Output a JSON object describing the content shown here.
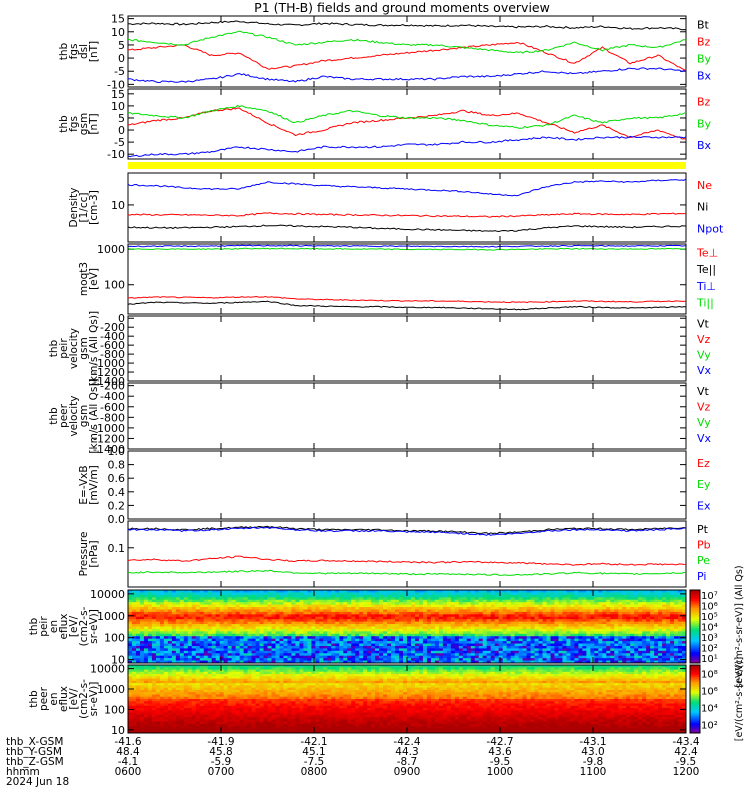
{
  "title": "P1 (TH-B) fields and ground moments overview",
  "chart_data": {
    "type": "line",
    "title": "P1 (TH-B) fields and ground moments overview",
    "panels": [
      {
        "id": "fgs-dsl",
        "ylabel": [
          "thb",
          "fgs",
          "dsl",
          "[nT]"
        ],
        "ylim": [
          -11,
          16
        ],
        "yticks": [
          "-10",
          "-5",
          "0",
          "5",
          "10",
          "15"
        ],
        "ytick_values": [
          -10,
          -5,
          0,
          5,
          10,
          15
        ],
        "scale": "linear",
        "series": [
          {
            "name": "Bt",
            "color": "#000000",
            "values": [
              13,
              13.2,
              12.8,
              13.5,
              14,
              13,
              12.5,
              13.2,
              12.8,
              12.5,
              12.6,
              12.2,
              12.5,
              12,
              11.8,
              12,
              11.5,
              12,
              11.2,
              11.5,
              11
            ]
          },
          {
            "name": "Bz",
            "color": "#ff0000",
            "values": [
              3,
              4,
              5,
              1,
              2,
              -4,
              -3,
              -1,
              0,
              1,
              2,
              3,
              4,
              5,
              6,
              2,
              -2,
              4,
              -2,
              1,
              -5
            ]
          },
          {
            "name": "By",
            "color": "#00dd00",
            "values": [
              7,
              6,
              5,
              8,
              10,
              8,
              5,
              6,
              7,
              6,
              5,
              5,
              4,
              3,
              2,
              3,
              6,
              3,
              5,
              4,
              7
            ]
          },
          {
            "name": "Bx",
            "color": "#0000ff",
            "values": [
              -8,
              -9,
              -9,
              -8,
              -6,
              -8,
              -9,
              -7,
              -8,
              -8,
              -8,
              -8,
              -7,
              -7,
              -6,
              -5,
              -6,
              -5,
              -4,
              -4,
              -5
            ]
          }
        ]
      },
      {
        "id": "fgs-gsm",
        "ylabel": [
          "thb",
          "fgs",
          "gsm",
          "[nT]"
        ],
        "ylim": [
          -12,
          17
        ],
        "yticks": [
          "-10",
          "-5",
          "0",
          "5",
          "10",
          "15"
        ],
        "ytick_values": [
          -10,
          -5,
          0,
          5,
          10,
          15
        ],
        "scale": "linear",
        "series": [
          {
            "name": "Bz",
            "color": "#ff0000",
            "values": [
              2,
              4,
              5,
              8,
              9,
              3,
              -2,
              0,
              3,
              4,
              5,
              6,
              8,
              6,
              7,
              3,
              -1,
              2,
              -3,
              0,
              -4
            ]
          },
          {
            "name": "By",
            "color": "#00dd00",
            "values": [
              7,
              6,
              5,
              8,
              10,
              8,
              3,
              6,
              8,
              6,
              5,
              5,
              4,
              2,
              1,
              2,
              6,
              3,
              5,
              5,
              7
            ]
          },
          {
            "name": "Bx",
            "color": "#0000ff",
            "values": [
              -11,
              -10,
              -10,
              -9,
              -7,
              -8,
              -9,
              -7,
              -7,
              -7,
              -6,
              -6,
              -5,
              -5,
              -4,
              -3,
              -4,
              -3,
              -3,
              -3,
              -3
            ]
          }
        ]
      },
      {
        "id": "density",
        "ylabel": [
          "Density",
          "[1/cc]",
          "[cm-3]"
        ],
        "ylim": [
          2,
          40
        ],
        "yticks": [
          "10"
        ],
        "ytick_values": [
          10
        ],
        "scale": "log",
        "series": [
          {
            "name": "Ne",
            "color": "#ff0000",
            "values": [
              6.6,
              6.5,
              6.5,
              6.4,
              6.3,
              7,
              6.8,
              6.6,
              6.5,
              6.4,
              6.3,
              6.2,
              6.1,
              6,
              6.2,
              6.5,
              6.8,
              6.7,
              6.6,
              6.8,
              6.9
            ]
          },
          {
            "name": "Ni",
            "color": "#000000",
            "values": [
              3.8,
              3.7,
              3.7,
              3.8,
              3.9,
              4.1,
              4,
              3.9,
              3.8,
              3.6,
              3.5,
              3.4,
              3.3,
              3.2,
              3.3,
              3.7,
              4,
              3.9,
              3.8,
              3.9,
              4
            ]
          },
          {
            "name": "Npot",
            "color": "#0000ff",
            "values": [
              24,
              23,
              21,
              20,
              20,
              27,
              25,
              23,
              22,
              21,
              20,
              19,
              18,
              16,
              15,
              22,
              27,
              28,
              27,
              29,
              30
            ]
          }
        ]
      },
      {
        "id": "temperature",
        "ylabel": [
          "moqt3",
          "[eV]"
        ],
        "ylim": [
          15,
          1400
        ],
        "yticks": [
          "100",
          "1000"
        ],
        "ytick_values": [
          100,
          1000
        ],
        "scale": "log",
        "series": [
          {
            "name": "Te⊥",
            "color": "#ff0000",
            "values": [
              42,
              45,
              44,
              43,
              45,
              46,
              40,
              38,
              37,
              36,
              35,
              35,
              34,
              33,
              32,
              33,
              35,
              34,
              33,
              34,
              35
            ]
          },
          {
            "name": "Te||",
            "color": "#000000",
            "values": [
              28,
              32,
              31,
              30,
              32,
              34,
              26,
              25,
              24,
              24,
              23,
              23,
              22,
              21,
              20,
              22,
              24,
              23,
              22,
              23,
              24
            ]
          },
          {
            "name": "Ti⊥",
            "color": "#0000ff",
            "values": [
              1200,
              1220,
              1210,
              1230,
              1250,
              1260,
              1250,
              1240,
              1230,
              1220,
              1210,
              1200,
              1190,
              1180,
              1200,
              1230,
              1250,
              1240,
              1230,
              1240,
              1250
            ]
          },
          {
            "name": "Ti||",
            "color": "#00dd00",
            "values": [
              1000,
              1010,
              1005,
              1010,
              1030,
              1040,
              1030,
              1020,
              1010,
              1000,
              990,
              985,
              980,
              970,
              990,
              1010,
              1030,
              1020,
              1010,
              1020,
              1030
            ]
          }
        ]
      },
      {
        "id": "peir-velocity",
        "ylabel": [
          "thb",
          "peir",
          "velocity",
          "gsm",
          "[km/s (All Qs)]"
        ],
        "ylim": [
          -1400,
          50
        ],
        "yticks": [
          "-1400",
          "-1200",
          "-1000",
          "-800",
          "-600",
          "-400",
          "-200",
          "0"
        ],
        "ytick_values": [
          -1400,
          -1200,
          -1000,
          -800,
          -600,
          -400,
          -200,
          0
        ],
        "scale": "linear",
        "legend": [
          "Vt",
          "Vz",
          "Vy",
          "Vx"
        ],
        "series": []
      },
      {
        "id": "peer-velocity",
        "ylabel": [
          "thb",
          "peer",
          "velocity",
          "gsm",
          "[km/s (All Qs)]"
        ],
        "ylim": [
          -1400,
          -150
        ],
        "yticks": [
          "-1400",
          "-1200",
          "-1000",
          "-800",
          "-600",
          "-400",
          "-200"
        ],
        "ytick_values": [
          -1400,
          -1200,
          -1000,
          -800,
          -600,
          -400,
          -200
        ],
        "scale": "linear",
        "legend": [
          "Vt",
          "Vz",
          "Vy",
          "Vx"
        ],
        "series": []
      },
      {
        "id": "efield",
        "ylabel": [
          "E=-VxB",
          "[mV/m]"
        ],
        "ylim": [
          0,
          1
        ],
        "yticks": [
          "0.0",
          "0.2",
          "0.4",
          "0.6",
          "0.8",
          "1.0"
        ],
        "ytick_values": [
          0,
          0.2,
          0.4,
          0.6,
          0.8,
          1.0
        ],
        "scale": "linear",
        "legend": [
          "Ez",
          "Ey",
          "Ex"
        ],
        "series": []
      },
      {
        "id": "pressure",
        "ylabel": [
          "Pressure",
          "[nPa]"
        ],
        "ylim": [
          0.02,
          0.3
        ],
        "yticks": [
          "0.1"
        ],
        "ytick_values": [
          0.1
        ],
        "scale": "log",
        "series": [
          {
            "name": "Pt",
            "color": "#000000",
            "values": [
              0.22,
              0.22,
              0.21,
              0.22,
              0.23,
              0.24,
              0.22,
              0.21,
              0.21,
              0.21,
              0.2,
              0.2,
              0.19,
              0.18,
              0.19,
              0.21,
              0.22,
              0.22,
              0.21,
              0.22,
              0.23
            ]
          },
          {
            "name": "Pb",
            "color": "#ff0000",
            "values": [
              0.06,
              0.062,
              0.058,
              0.064,
              0.07,
              0.062,
              0.058,
              0.059,
              0.058,
              0.057,
              0.056,
              0.055,
              0.056,
              0.055,
              0.054,
              0.052,
              0.05,
              0.052,
              0.05,
              0.051,
              0.05
            ]
          },
          {
            "name": "Pe",
            "color": "#00dd00",
            "values": [
              0.036,
              0.037,
              0.036,
              0.037,
              0.038,
              0.039,
              0.036,
              0.035,
              0.035,
              0.035,
              0.034,
              0.034,
              0.034,
              0.033,
              0.033,
              0.034,
              0.036,
              0.035,
              0.034,
              0.035,
              0.036
            ]
          },
          {
            "name": "Pi",
            "color": "#0000ff",
            "values": [
              0.21,
              0.21,
              0.2,
              0.21,
              0.22,
              0.23,
              0.21,
              0.2,
              0.2,
              0.2,
              0.19,
              0.19,
              0.18,
              0.17,
              0.18,
              0.2,
              0.21,
              0.21,
              0.2,
              0.21,
              0.22
            ]
          }
        ]
      },
      {
        "id": "peir-eflux",
        "type": "heatmap",
        "ylabel": [
          "thb",
          "peir",
          "en",
          "eflux",
          "[eV/",
          "(cm2-s-",
          "sr-eV)]"
        ],
        "yticks": [
          "10",
          "100",
          "1000",
          "10000"
        ],
        "ytick_values": [
          10,
          100,
          1000,
          10000
        ],
        "scale": "log",
        "colorbar": {
          "ticks": [
            "10¹",
            "10²",
            "10³",
            "10⁴",
            "10⁵",
            "10⁶",
            "10⁷"
          ],
          "unit": "[eV/(cm²-s-sr-eV)] (All Qs)"
        }
      },
      {
        "id": "peer-eflux",
        "type": "heatmap",
        "ylabel": [
          "thb",
          "peer",
          "en",
          "eflux",
          "[eV/",
          "(cm2-s-",
          "sr-eV)]"
        ],
        "yticks": [
          "10",
          "100",
          "1000",
          "10000"
        ],
        "ytick_values": [
          10,
          100,
          1000,
          10000
        ],
        "scale": "log",
        "colorbar": {
          "ticks": [
            "10²",
            "10⁴",
            "10⁶",
            "10⁸"
          ],
          "unit": "[eV/(cm²-s-sr-eV)]"
        }
      }
    ],
    "x_axis": {
      "rows": [
        {
          "label": "thb_X-GSM",
          "values": [
            "-41.6",
            "-41.9",
            "-42.1",
            "-42.4",
            "-42.7",
            "-43.1",
            "-43.4"
          ]
        },
        {
          "label": "thb_Y-GSM",
          "values": [
            "48.4",
            "45.8",
            "45.1",
            "44.3",
            "43.6",
            "43.0",
            "42.4"
          ]
        },
        {
          "label": "thb_Z-GSM",
          "values": [
            "-4.1",
            "-5.9",
            "-7.5",
            "-8.7",
            "-9.5",
            "-9.8",
            "-9.5"
          ]
        },
        {
          "label": "hhmm",
          "values": [
            "0600",
            "0700",
            "0800",
            "0900",
            "1000",
            "1100",
            "1200"
          ]
        }
      ],
      "date": "2024 Jun 18"
    },
    "status_bar_color": "#ffff00"
  }
}
